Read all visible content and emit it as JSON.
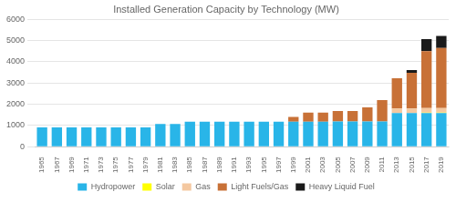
{
  "chart_data": {
    "type": "bar",
    "title": "Installed Generation Capacity by Technology (MW)",
    "stacked": true,
    "categories": [
      "1965",
      "1967",
      "1969",
      "1971",
      "1973",
      "1975",
      "1977",
      "1979",
      "1981",
      "1983",
      "1985",
      "1987",
      "1989",
      "1991",
      "1993",
      "1995",
      "1997",
      "1999",
      "2001",
      "2003",
      "2005",
      "2007",
      "2009",
      "2011",
      "2013",
      "2015",
      "2017",
      "2019"
    ],
    "series": [
      {
        "name": "Hydropower",
        "color": "#29b5e8",
        "values": [
          912,
          912,
          912,
          912,
          912,
          912,
          912,
          912,
          1072,
          1072,
          1180,
          1180,
          1180,
          1180,
          1180,
          1180,
          1180,
          1180,
          1180,
          1180,
          1187,
          1187,
          1187,
          1187,
          1580,
          1580,
          1580,
          1580
        ]
      },
      {
        "name": "Solar",
        "color": "#ffff00",
        "values": [
          0,
          0,
          0,
          0,
          0,
          0,
          0,
          0,
          0,
          0,
          0,
          0,
          0,
          0,
          0,
          0,
          0,
          0,
          0,
          0,
          0,
          0,
          0,
          0,
          0,
          0,
          23,
          23
        ]
      },
      {
        "name": "Gas",
        "color": "#f4c8a0",
        "values": [
          0,
          0,
          0,
          0,
          0,
          0,
          0,
          0,
          0,
          0,
          0,
          0,
          0,
          0,
          0,
          0,
          0,
          0,
          0,
          0,
          0,
          0,
          0,
          0,
          220,
          220,
          220,
          220
        ]
      },
      {
        "name": "Light Fuels/Gas",
        "color": "#c87137",
        "values": [
          0,
          0,
          0,
          0,
          0,
          0,
          0,
          0,
          0,
          0,
          0,
          0,
          0,
          0,
          0,
          0,
          0,
          220,
          430,
          430,
          490,
          490,
          660,
          1010,
          1420,
          1680,
          2680,
          2830
        ]
      },
      {
        "name": "Heavy Liquid Fuel",
        "color": "#1a1a1a",
        "values": [
          0,
          0,
          0,
          0,
          0,
          0,
          0,
          0,
          0,
          0,
          0,
          0,
          0,
          0,
          0,
          0,
          0,
          0,
          0,
          0,
          0,
          0,
          0,
          0,
          0,
          126,
          560,
          560
        ]
      }
    ],
    "ylim": [
      0,
      6000
    ],
    "yticks": [
      0,
      1000,
      2000,
      3000,
      4000,
      5000,
      6000
    ],
    "grid": true,
    "legend": "bottom"
  }
}
